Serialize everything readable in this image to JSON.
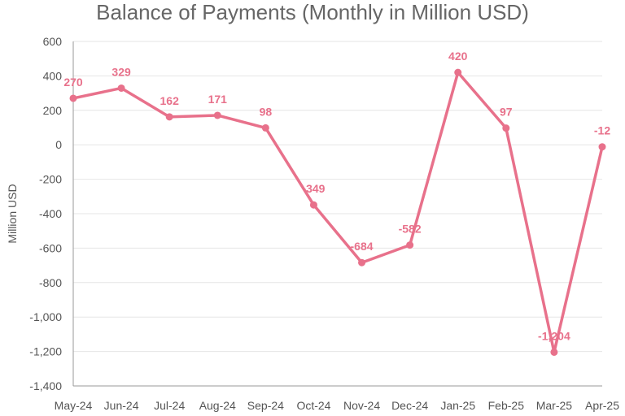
{
  "chart_data": {
    "type": "line",
    "title": "Balance of Payments (Monthly in Million USD)",
    "xlabel": "",
    "ylabel": "Million USD",
    "categories": [
      "May-24",
      "Jun-24",
      "Jul-24",
      "Aug-24",
      "Sep-24",
      "Oct-24",
      "Nov-24",
      "Dec-24",
      "Jan-25",
      "Feb-25",
      "Mar-25",
      "Apr-25"
    ],
    "series": [
      {
        "values": [
          270,
          329,
          162,
          171,
          98,
          -349,
          -684,
          -582,
          420,
          97,
          -1204,
          -12
        ],
        "labels": [
          "270",
          "329",
          "162",
          "171",
          "98",
          "-349",
          "-684",
          "-582",
          "420",
          "97",
          "-1,204",
          "-12"
        ],
        "color": "#e8718b"
      }
    ],
    "ylim": [
      -1400,
      600
    ],
    "yticks": [
      600,
      400,
      200,
      0,
      -200,
      -400,
      -600,
      -800,
      -1000,
      -1200,
      -1400
    ],
    "ytick_labels": [
      "600",
      "400",
      "200",
      "0",
      "-200",
      "-400",
      "-600",
      "-800",
      "-1,000",
      "-1,200",
      "-1,400"
    ],
    "grid": true,
    "legend": "none"
  }
}
